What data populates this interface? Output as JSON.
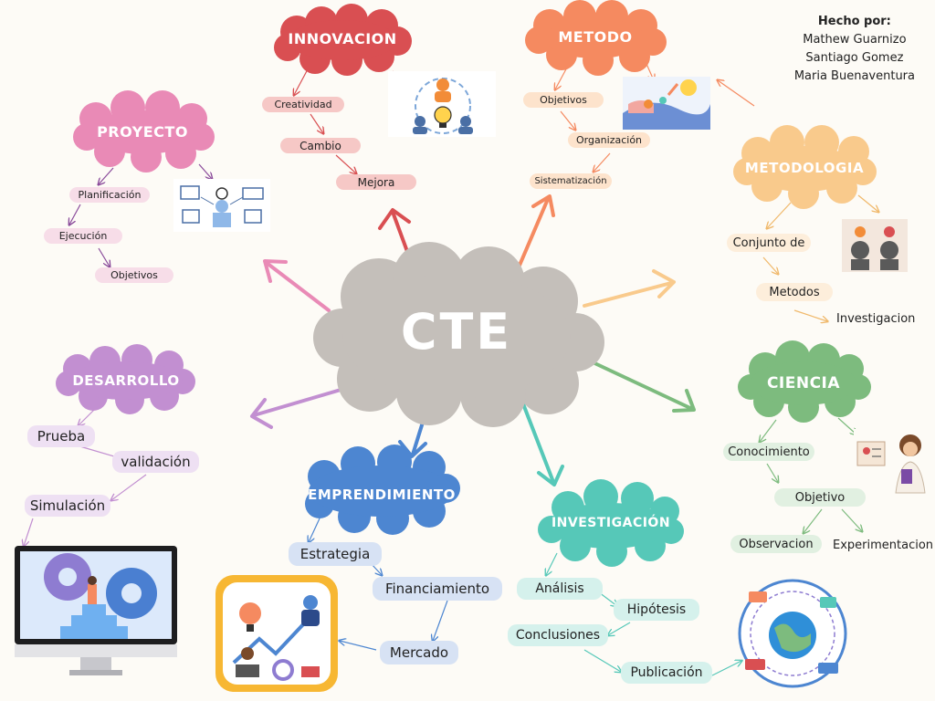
{
  "credits": {
    "heading": "Hecho por:",
    "names": [
      "Mathew Guarnizo",
      "Santiago Gomez",
      "Maria Buenaventura"
    ]
  },
  "center": {
    "label": "CTE"
  },
  "branches": {
    "innovacion": {
      "title": "INNOVACION",
      "items": [
        "Creatividad",
        "Cambio",
        "Mejora"
      ]
    },
    "metodo": {
      "title": "METODO",
      "items": [
        "Objetivos",
        "Organización",
        "Sistematización"
      ]
    },
    "proyecto": {
      "title": "PROYECTO",
      "items": [
        "Planificación",
        "Ejecución",
        "Objetivos"
      ]
    },
    "metodologia": {
      "title": "METODOLOGIA",
      "items": [
        "Conjunto de",
        "Metodos",
        "Investigacion"
      ]
    },
    "desarrollo": {
      "title": "DESARROLLO",
      "items": [
        "Prueba",
        "validación",
        "Simulación"
      ]
    },
    "ciencia": {
      "title": "CIENCIA",
      "items": [
        "Conocimiento",
        "Objetivo",
        "Observacion",
        "Experimentacion"
      ]
    },
    "emprendimiento": {
      "title": "EMPRENDIMIENTO",
      "items": [
        "Estrategia",
        "Financiamiento",
        "Mercado"
      ]
    },
    "investigacion": {
      "title": "INVESTIGACIÓN",
      "items": [
        "Análisis",
        "Hipótesis",
        "Conclusiones",
        "Publicación"
      ]
    }
  },
  "colors": {
    "center": "#c4bfba",
    "innovacion": "#d94f52",
    "metodo": "#f58a60",
    "proyecto": "#e98ab6",
    "metodologia": "#f9ca8c",
    "desarrollo": "#c28fd1",
    "ciencia": "#7dbb7e",
    "emprendimiento": "#4d86d1",
    "investigacion": "#56c8b8"
  },
  "icons": [
    "teamwork-idea-icon",
    "method-hands-icon",
    "project-planning-icon",
    "methodology-heads-icon",
    "teacher-science-icon",
    "computer-gears-icon",
    "entrepreneur-icon",
    "global-network-icon"
  ]
}
